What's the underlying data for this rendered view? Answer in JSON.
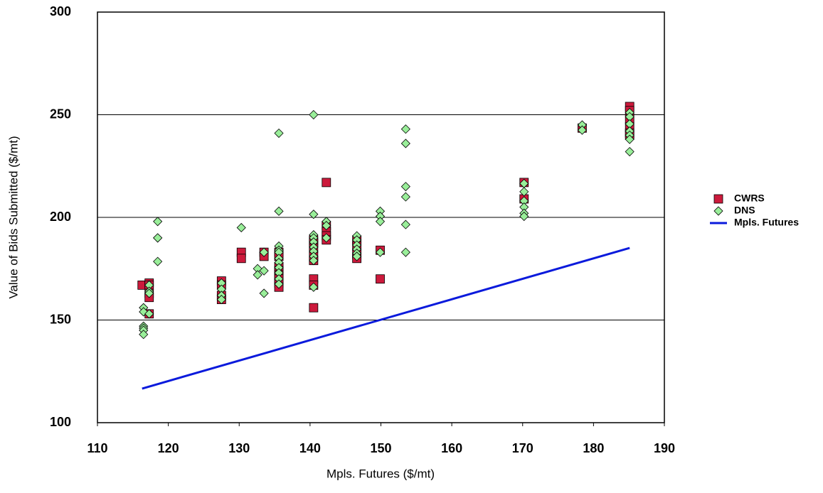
{
  "chart_data": {
    "type": "scatter",
    "x_label": "Mpls. Futures ($/mt)",
    "y_label": "Value of Bids Submitted ($/mt)",
    "xlim": [
      110,
      190
    ],
    "xticks": [
      110,
      120,
      130,
      140,
      150,
      160,
      170,
      180,
      190
    ],
    "ylim": [
      100,
      300
    ],
    "yticks": [
      100,
      150,
      200,
      250,
      300
    ],
    "grid": true,
    "legend": "right",
    "series": [
      {
        "name": "CWRS",
        "color": "#cc1a3c",
        "marker": "square",
        "x": [
          116.3,
          117.3,
          117.3,
          117.3,
          117.3,
          117.3,
          127.5,
          127.5,
          127.5,
          127.5,
          130.3,
          130.3,
          133.5,
          133.5,
          135.6,
          135.6,
          135.6,
          135.6,
          135.6,
          135.6,
          135.6,
          135.6,
          140.5,
          140.5,
          140.5,
          140.5,
          140.5,
          140.5,
          140.5,
          140.5,
          142.3,
          142.3,
          142.3,
          142.3,
          142.3,
          146.6,
          146.6,
          146.6,
          146.6,
          149.9,
          149.9,
          170.2,
          170.2,
          178.4,
          185.1,
          185.1,
          185.1,
          185.1,
          185.1,
          185.1
        ],
        "values": [
          167,
          168,
          167,
          163,
          161,
          153,
          169,
          167,
          162,
          160,
          183,
          180,
          183,
          181,
          183,
          181,
          176,
          174,
          172,
          170,
          168,
          166,
          189,
          187.5,
          185,
          181,
          179,
          170,
          167,
          156,
          217,
          196,
          193,
          191,
          189,
          189,
          186,
          182,
          180,
          184,
          170,
          217,
          209,
          243.5,
          254,
          252,
          248,
          244,
          241,
          240
        ]
      },
      {
        "name": "DNS",
        "color": "#99ee99",
        "marker": "diamond",
        "x": [
          116.5,
          116.5,
          116.5,
          116.5,
          116.5,
          116.5,
          117.3,
          117.3,
          117.3,
          117.3,
          118.5,
          118.5,
          118.5,
          118.5,
          127.5,
          127.5,
          127.5,
          127.5,
          130.3,
          132.6,
          132.6,
          133.5,
          133.5,
          133.5,
          135.6,
          135.6,
          135.6,
          135.6,
          135.6,
          135.6,
          135.6,
          135.6,
          135.6,
          135.6,
          135.6,
          140.5,
          140.5,
          140.5,
          140.5,
          140.5,
          140.5,
          140.5,
          140.5,
          140.5,
          140.5,
          142.3,
          142.3,
          142.3,
          146.6,
          146.6,
          146.6,
          146.6,
          146.6,
          146.6,
          149.9,
          149.9,
          149.9,
          149.9,
          153.5,
          153.5,
          153.5,
          153.5,
          153.5,
          153.5,
          170.2,
          170.2,
          170.2,
          170.2,
          170.2,
          170.2,
          178.4,
          178.4,
          185.1,
          185.1,
          185.1,
          185.1,
          185.1,
          185.1,
          185.1
        ],
        "values": [
          156,
          154,
          147,
          146,
          145,
          143,
          167,
          164,
          163,
          153,
          198,
          190,
          190,
          178.5,
          168,
          165,
          162,
          160,
          195,
          175,
          172,
          183,
          174,
          163,
          241,
          203,
          186,
          184,
          183,
          180,
          178,
          175.5,
          173,
          170,
          167.5,
          250,
          201.5,
          191.5,
          190,
          188,
          185.5,
          183.5,
          181,
          179,
          166,
          198,
          196,
          190,
          191,
          189,
          186.5,
          184.5,
          182.5,
          181,
          203,
          200.5,
          198,
          183,
          243,
          236,
          215,
          210,
          196.5,
          183,
          216.5,
          212.5,
          208,
          205,
          202,
          200.5,
          245,
          242.5,
          251,
          249,
          245.5,
          242,
          240,
          238,
          232
        ]
      },
      {
        "name": "Mpls. Futures",
        "color": "#0a1adc",
        "marker": null,
        "x": [
          116.3,
          185.1
        ],
        "values": [
          116.6,
          185.1
        ]
      }
    ]
  }
}
